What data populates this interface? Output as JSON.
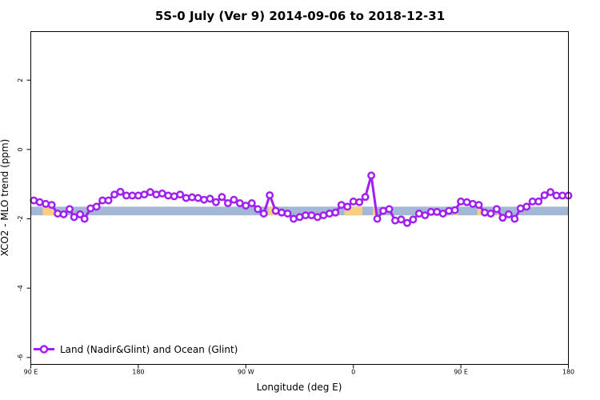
{
  "chart_data": {
    "type": "line",
    "title": "5S-0 July (Ver 9)   2014-09-06 to 2018-12-31",
    "xlabel": "Longitude (deg E)",
    "ylabel": "XCO2 - MLO trend (ppm)",
    "xlim": [
      90,
      450
    ],
    "ylim": [
      -6.2,
      3.4
    ],
    "x_ticks": [
      {
        "value": 90,
        "label": "90 E"
      },
      {
        "value": 162,
        "label": "180"
      },
      {
        "value": 234,
        "label": "90 W"
      },
      {
        "value": 306,
        "label": "0"
      },
      {
        "value": 378,
        "label": "90 E"
      },
      {
        "value": 450,
        "label": "180"
      }
    ],
    "y_ticks": [
      {
        "value": 2,
        "label": "2"
      },
      {
        "value": 0,
        "label": "0"
      },
      {
        "value": -2,
        "label": "-2"
      },
      {
        "value": -4,
        "label": "-4"
      },
      {
        "value": -6,
        "label": "-6"
      }
    ],
    "band": {
      "ymin": -1.9,
      "ymax": -1.65,
      "color": "#a3b8d6"
    },
    "land_segments_color": "#ffd27a",
    "land_segments": [
      [
        98,
        112
      ],
      [
        124,
        128
      ],
      [
        249,
        262
      ],
      [
        300,
        312
      ],
      [
        319,
        324
      ],
      [
        373,
        376
      ],
      [
        389,
        395
      ],
      [
        402,
        416
      ]
    ],
    "series": [
      {
        "name": "Land (Nadir&Glint) and Ocean (Glint)",
        "color": "#a020f0",
        "x": [
          92,
          96,
          100,
          104,
          108,
          112,
          116,
          119,
          123,
          126,
          130,
          134,
          138,
          142,
          146,
          150,
          154,
          158,
          162,
          166,
          170,
          174,
          178,
          182,
          186,
          190,
          194,
          198,
          202,
          206,
          210,
          214,
          218,
          222,
          226,
          230,
          234,
          238,
          242,
          246,
          250,
          254,
          258,
          262,
          266,
          270,
          274,
          278,
          282,
          286,
          290,
          294,
          298,
          302,
          306,
          310,
          314,
          318,
          322,
          326,
          330,
          334,
          338,
          342,
          346,
          350,
          354,
          358,
          362,
          366,
          370,
          374,
          378,
          382,
          386,
          390,
          394,
          398,
          402,
          406,
          410,
          414,
          418,
          422,
          426,
          430,
          434,
          438,
          442,
          446,
          450
        ],
        "y": [
          -1.47,
          -1.52,
          -1.57,
          -1.6,
          -1.85,
          -1.87,
          -1.72,
          -1.95,
          -1.87,
          -2.0,
          -1.7,
          -1.65,
          -1.47,
          -1.47,
          -1.3,
          -1.22,
          -1.33,
          -1.33,
          -1.33,
          -1.3,
          -1.23,
          -1.3,
          -1.27,
          -1.33,
          -1.35,
          -1.3,
          -1.4,
          -1.38,
          -1.4,
          -1.45,
          -1.42,
          -1.52,
          -1.37,
          -1.55,
          -1.45,
          -1.55,
          -1.62,
          -1.55,
          -1.72,
          -1.85,
          -1.32,
          -1.77,
          -1.82,
          -1.85,
          -2.0,
          -1.95,
          -1.9,
          -1.9,
          -1.95,
          -1.9,
          -1.85,
          -1.82,
          -1.6,
          -1.65,
          -1.5,
          -1.52,
          -1.37,
          -0.75,
          -2.0,
          -1.77,
          -1.72,
          -2.05,
          -2.02,
          -2.12,
          -2.02,
          -1.85,
          -1.9,
          -1.8,
          -1.8,
          -1.85,
          -1.77,
          -1.75,
          -1.5,
          -1.52,
          -1.57,
          -1.6,
          -1.82,
          -1.85,
          -1.72,
          -1.97,
          -1.87,
          -2.0,
          -1.7,
          -1.65,
          -1.5,
          -1.5,
          -1.32,
          -1.23,
          -1.33,
          -1.33,
          -1.33
        ]
      }
    ],
    "legend": {
      "position": "bottom-left"
    },
    "grid": false
  }
}
